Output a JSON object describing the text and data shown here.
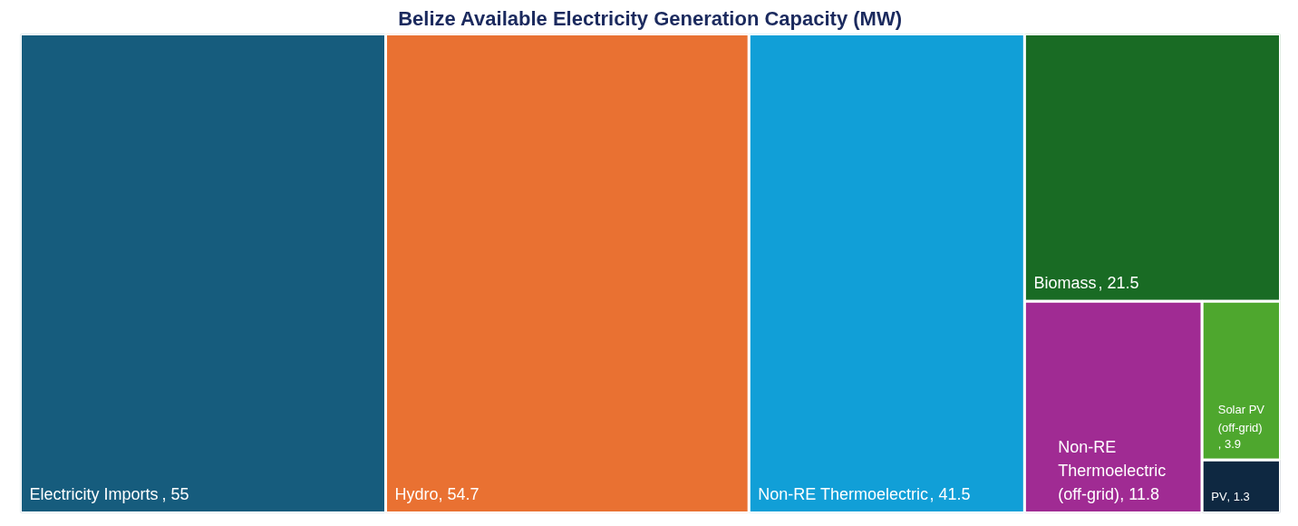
{
  "chart_data": {
    "type": "other",
    "title": "Belize Available Electricity Generation Capacity (MW)",
    "categories": [
      "Electricity Imports ",
      "Hydro ",
      "Non-RE Thermoelectric ",
      "Biomass",
      "Non-RE Thermoelectric (off-grid)",
      "Solar PV (off-grid)",
      "PV"
    ],
    "values": [
      55,
      54.7,
      41.5,
      21.5,
      11.8,
      3.9,
      1.3
    ],
    "value_labels": [
      ", 55",
      ", 54.7",
      ", 41.5",
      ", 21.5",
      ", 11.8",
      ", 3.9",
      ", 1.3"
    ],
    "colors": [
      "#165c7d",
      "#e97132",
      "#119fd7",
      "#196b24",
      "#a02b93",
      "#4ea72e",
      "#0e2841"
    ]
  }
}
